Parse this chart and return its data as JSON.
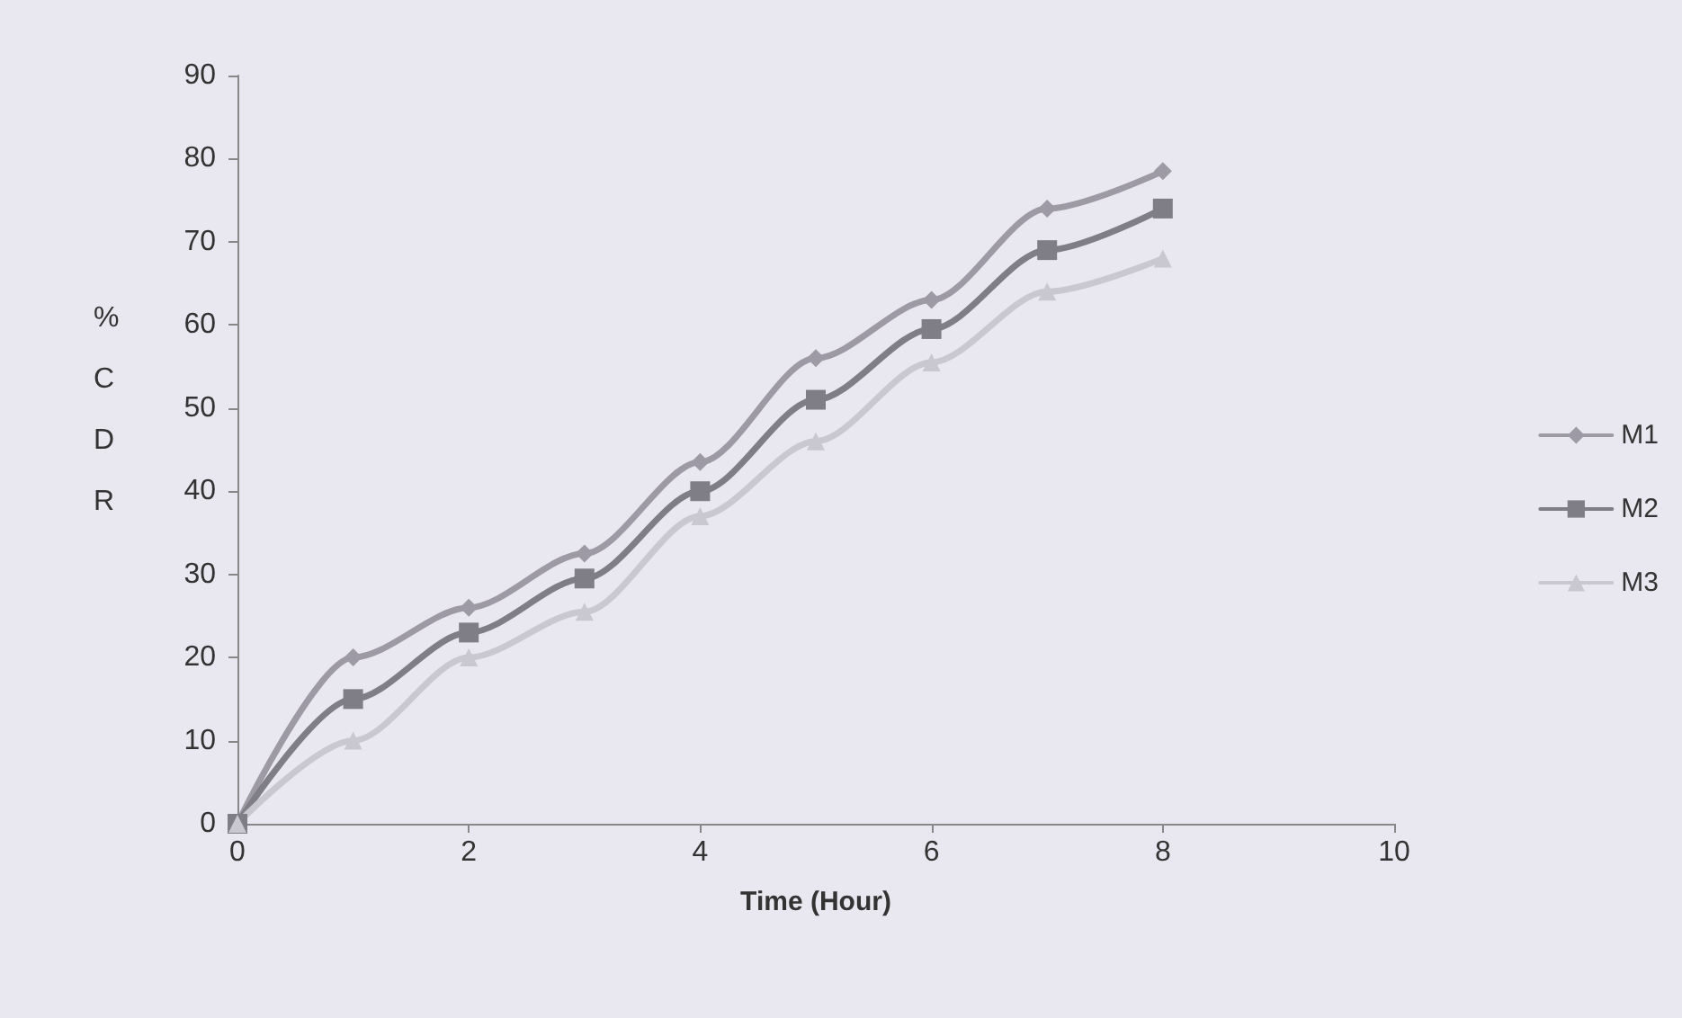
{
  "chart_data": {
    "type": "line",
    "xlabel": "Time (Hour)",
    "ylabel": "%CDR",
    "x": [
      0,
      1,
      2,
      3,
      4,
      5,
      6,
      7,
      8
    ],
    "xlim": [
      0,
      10
    ],
    "xticks": [
      0,
      2,
      4,
      6,
      8,
      10
    ],
    "ylim": [
      0,
      90
    ],
    "yticks": [
      0,
      10,
      20,
      30,
      40,
      50,
      60,
      70,
      80,
      90
    ],
    "grid": false,
    "legend": "right",
    "series": [
      {
        "name": "M1",
        "color": "#9d9aa6",
        "marker": "diamond",
        "values": [
          0,
          20,
          26,
          32.5,
          43.5,
          56,
          63,
          74,
          78.5
        ]
      },
      {
        "name": "M2",
        "color": "#7f7d86",
        "marker": "square",
        "values": [
          0,
          15,
          23,
          29.5,
          40,
          51,
          59.5,
          69,
          74
        ]
      },
      {
        "name": "M3",
        "color": "#c9c7cf",
        "marker": "triangle",
        "values": [
          0,
          10,
          20,
          25.5,
          37,
          46,
          55.5,
          64,
          68
        ]
      }
    ]
  }
}
